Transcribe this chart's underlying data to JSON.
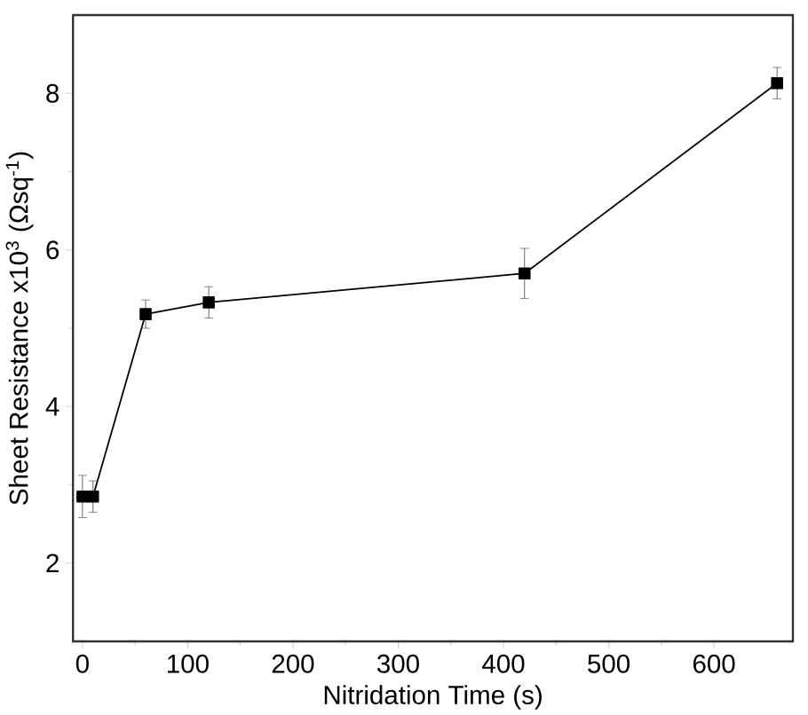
{
  "chart_data": {
    "type": "line",
    "xlabel": "Nitridation Time (s)",
    "ylabel": "Sheet Resistance x10$^{3}$ (Ωsq$^{-1}$)",
    "x": [
      0,
      10,
      60,
      120,
      420,
      660
    ],
    "series": [
      {
        "color": "#000000",
        "values": [
          2.85,
          2.85,
          5.18,
          5.33,
          5.7,
          8.13
        ],
        "errors": [
          0.27,
          0.2,
          0.18,
          0.2,
          0.32,
          0.2
        ]
      }
    ],
    "xlim": [
      -9,
      675
    ],
    "ylim": [
      1,
      9
    ],
    "xticks": [
      0,
      100,
      200,
      300,
      400,
      500,
      600
    ],
    "yticks": [
      2,
      4,
      6,
      8
    ],
    "grid": false,
    "marker": "square",
    "line_style": "solid"
  }
}
